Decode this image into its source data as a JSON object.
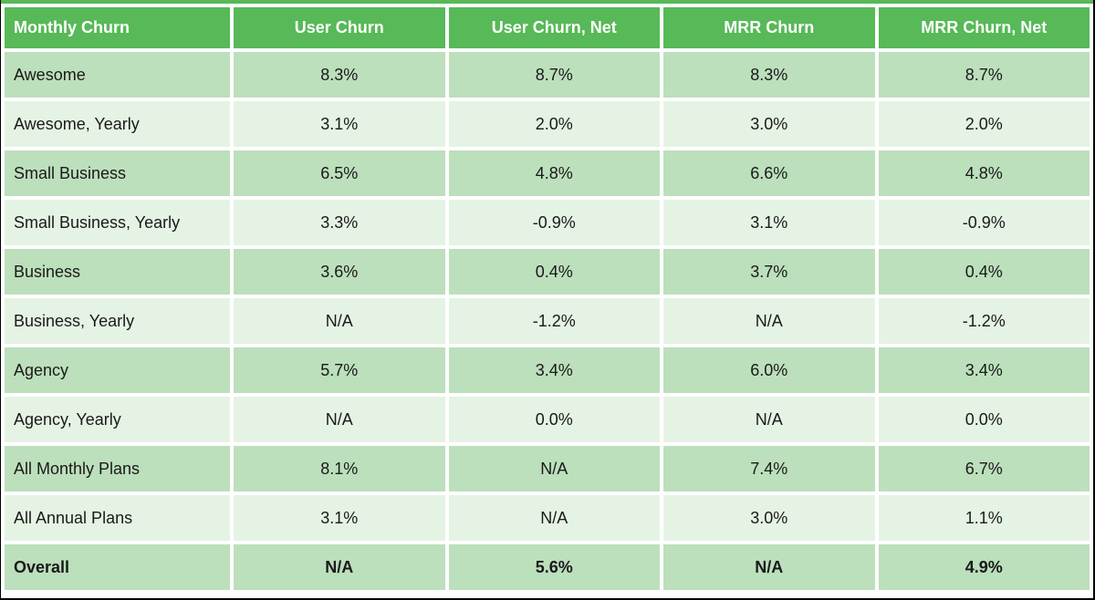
{
  "colors": {
    "header_green": "#57B957",
    "band_dark": "#BCDFBC",
    "band_light": "#E5F3E4",
    "header_text": "#FFFFFF",
    "body_text": "#1A1A1A",
    "frame_black": "#000000"
  },
  "chart_data": {
    "type": "table",
    "title": "Monthly Churn",
    "columns": [
      "Monthly Churn",
      "User Churn",
      "User Churn, Net",
      "MRR Churn",
      "MRR Churn, Net"
    ],
    "rows": [
      {
        "cells": [
          "Awesome",
          "8.3%",
          "8.7%",
          "8.3%",
          "8.7%"
        ],
        "bold": false
      },
      {
        "cells": [
          "Awesome, Yearly",
          "3.1%",
          "2.0%",
          "3.0%",
          "2.0%"
        ],
        "bold": false
      },
      {
        "cells": [
          "Small Business",
          "6.5%",
          "4.8%",
          "6.6%",
          "4.8%"
        ],
        "bold": false
      },
      {
        "cells": [
          "Small Business, Yearly",
          "3.3%",
          "-0.9%",
          "3.1%",
          "-0.9%"
        ],
        "bold": false
      },
      {
        "cells": [
          "Business",
          "3.6%",
          "0.4%",
          "3.7%",
          "0.4%"
        ],
        "bold": false
      },
      {
        "cells": [
          "Business, Yearly",
          "N/A",
          "-1.2%",
          "N/A",
          "-1.2%"
        ],
        "bold": false
      },
      {
        "cells": [
          "Agency",
          "5.7%",
          "3.4%",
          "6.0%",
          "3.4%"
        ],
        "bold": false
      },
      {
        "cells": [
          "Agency, Yearly",
          "N/A",
          "0.0%",
          "N/A",
          "0.0%"
        ],
        "bold": false
      },
      {
        "cells": [
          "All Monthly Plans",
          "8.1%",
          "N/A",
          "7.4%",
          "6.7%"
        ],
        "bold": false
      },
      {
        "cells": [
          "All Annual Plans",
          "3.1%",
          "N/A",
          "3.0%",
          "1.1%"
        ],
        "bold": false
      },
      {
        "cells": [
          "Overall",
          "N/A",
          "5.6%",
          "N/A",
          "4.9%"
        ],
        "bold": true
      }
    ]
  }
}
